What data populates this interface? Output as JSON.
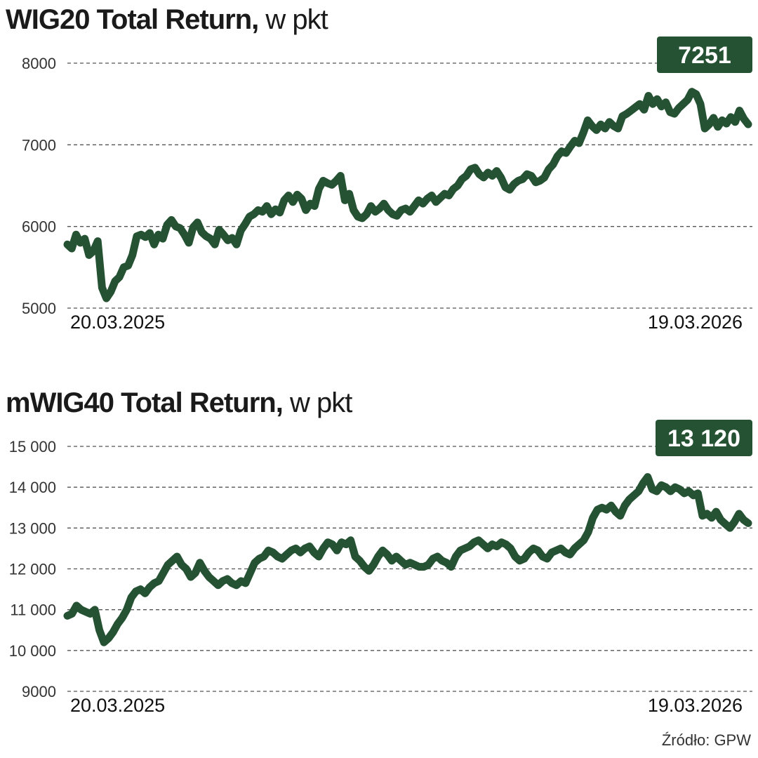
{
  "colors": {
    "line": "#265234",
    "badge": "#265234",
    "grid": "#555555"
  },
  "source": "Źródło: GPW",
  "chart_data": [
    {
      "type": "line",
      "title": "WIG20 Total Return,",
      "unit": "w pkt",
      "ylim": [
        5000,
        8000
      ],
      "yticks": [
        5000,
        6000,
        7000,
        8000
      ],
      "ytick_labels": [
        "5000",
        "6000",
        "7000",
        "8000"
      ],
      "x_start_label": "20.03.2025",
      "x_end_label": "19.03.2026",
      "last_value_label": "7251",
      "grid": true,
      "series": [
        {
          "values": [
            5780,
            5730,
            5900,
            5800,
            5850,
            5650,
            5700,
            5820,
            5250,
            5120,
            5200,
            5330,
            5380,
            5500,
            5520,
            5650,
            5880,
            5900,
            5870,
            5920,
            5780,
            5900,
            5850,
            6020,
            6080,
            6000,
            5980,
            5900,
            5800,
            5990,
            6050,
            5930,
            5880,
            5850,
            5780,
            5960,
            5900,
            5830,
            5860,
            5780,
            5950,
            6030,
            6120,
            6150,
            6200,
            6180,
            6250,
            6150,
            6210,
            6170,
            6320,
            6380,
            6300,
            6390,
            6340,
            6200,
            6280,
            6250,
            6460,
            6560,
            6530,
            6510,
            6560,
            6620,
            6320,
            6400,
            6200,
            6120,
            6100,
            6150,
            6250,
            6180,
            6220,
            6280,
            6200,
            6150,
            6130,
            6200,
            6220,
            6180,
            6250,
            6320,
            6280,
            6340,
            6380,
            6300,
            6350,
            6400,
            6380,
            6460,
            6500,
            6580,
            6620,
            6700,
            6720,
            6640,
            6600,
            6660,
            6620,
            6680,
            6600,
            6480,
            6450,
            6520,
            6560,
            6580,
            6640,
            6620,
            6540,
            6560,
            6600,
            6700,
            6760,
            6860,
            6920,
            6900,
            6980,
            7050,
            7020,
            7150,
            7300,
            7230,
            7180,
            7250,
            7200,
            7280,
            7230,
            7200,
            7350,
            7380,
            7420,
            7460,
            7500,
            7430,
            7600,
            7500,
            7560,
            7470,
            7520,
            7400,
            7380,
            7450,
            7500,
            7550,
            7650,
            7620,
            7500,
            7200,
            7250,
            7330,
            7220,
            7300,
            7260,
            7340,
            7280,
            7420,
            7320,
            7251
          ]
        }
      ]
    },
    {
      "type": "line",
      "title": "mWIG40 Total Return,",
      "unit": "w pkt",
      "ylim": [
        9000,
        15000
      ],
      "yticks": [
        9000,
        10000,
        11000,
        12000,
        13000,
        14000,
        15000
      ],
      "ytick_labels": [
        "9000",
        "10 000",
        "11 000",
        "12 000",
        "13 000",
        "14 000",
        "15 000"
      ],
      "x_start_label": "20.03.2025",
      "x_end_label": "19.03.2026",
      "last_value_label": "13 120",
      "grid": true,
      "series": [
        {
          "values": [
            10850,
            10900,
            11100,
            11000,
            10950,
            10900,
            11000,
            10500,
            10200,
            10300,
            10450,
            10650,
            10800,
            11000,
            11300,
            11450,
            11500,
            11400,
            11550,
            11650,
            11700,
            11900,
            12100,
            12200,
            12300,
            12100,
            12000,
            11800,
            11900,
            12150,
            11950,
            11800,
            11700,
            11600,
            11700,
            11750,
            11650,
            11600,
            11700,
            11650,
            11900,
            12150,
            12250,
            12300,
            12450,
            12400,
            12300,
            12250,
            12350,
            12450,
            12500,
            12400,
            12500,
            12550,
            12400,
            12300,
            12500,
            12650,
            12600,
            12450,
            12650,
            12600,
            12700,
            12300,
            12200,
            12050,
            11950,
            12100,
            12300,
            12450,
            12350,
            12200,
            12300,
            12200,
            12100,
            12150,
            12100,
            12050,
            12050,
            12100,
            12250,
            12300,
            12200,
            12150,
            12050,
            12300,
            12450,
            12500,
            12550,
            12650,
            12700,
            12600,
            12500,
            12600,
            12550,
            12650,
            12600,
            12500,
            12300,
            12200,
            12250,
            12400,
            12500,
            12450,
            12300,
            12250,
            12400,
            12450,
            12500,
            12400,
            12350,
            12500,
            12600,
            12700,
            12900,
            13250,
            13450,
            13500,
            13450,
            13550,
            13400,
            13300,
            13550,
            13700,
            13800,
            13900,
            14100,
            14250,
            13950,
            13900,
            14050,
            14000,
            13900,
            14000,
            13950,
            13850,
            13900,
            13800,
            13850,
            13300,
            13350,
            13250,
            13400,
            13200,
            13100,
            13000,
            13150,
            13350,
            13200,
            13120
          ]
        }
      ]
    }
  ]
}
